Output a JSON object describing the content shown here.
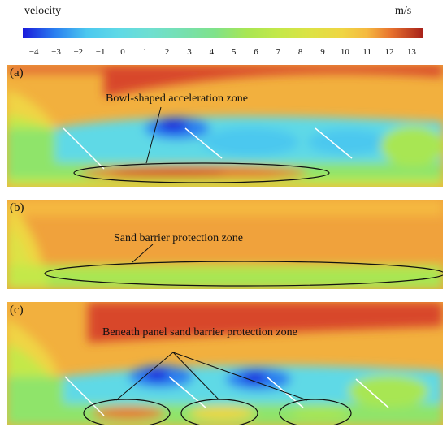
{
  "colorbar": {
    "title": "velocity",
    "unit": "m/s",
    "ticks": [
      "−4",
      "−3",
      "−2",
      "−1",
      "0",
      "1",
      "2",
      "3",
      "4",
      "5",
      "6",
      "7",
      "8",
      "9",
      "10",
      "11",
      "12",
      "13"
    ],
    "colors": [
      "#1a1adb",
      "#1f4fe6",
      "#2a7ff0",
      "#39a9f2",
      "#4cc8ef",
      "#5fd9e6",
      "#6fdfd0",
      "#76e0b0",
      "#7fe28a",
      "#8fe46a",
      "#a8e653",
      "#c4e849",
      "#dde245",
      "#efd543",
      "#f5b940",
      "#f29a3a",
      "#e8732f",
      "#d74a26",
      "#c22c1e",
      "#a8221a"
    ]
  },
  "panels": [
    {
      "label": "(a)",
      "annotation": "Bowl-shaped acceleration zone"
    },
    {
      "label": "(b)",
      "annotation": "Sand barrier protection zone"
    },
    {
      "label": "(c)",
      "annotation": "Beneath panel sand barrier protection zone"
    }
  ]
}
